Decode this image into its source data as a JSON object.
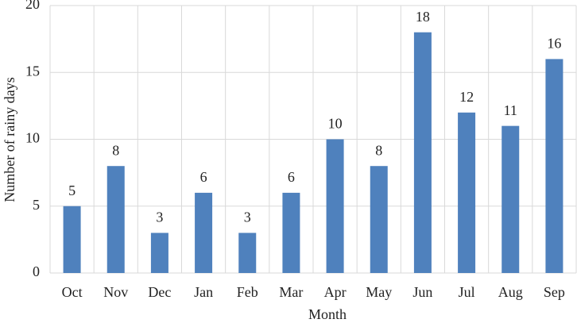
{
  "chart_data": {
    "type": "bar",
    "x_label": "Month",
    "y_label": "Number of rainy days",
    "categories": [
      "Oct",
      "Nov",
      "Dec",
      "Jan",
      "Feb",
      "Mar",
      "Apr",
      "May",
      "Jun",
      "Jul",
      "Aug",
      "Sep"
    ],
    "values": [
      5,
      8,
      3,
      6,
      3,
      6,
      10,
      8,
      18,
      12,
      11,
      16
    ],
    "color": "#4f81bd",
    "ylim": [
      0,
      20
    ],
    "yticks": [
      0,
      5,
      10,
      15,
      20
    ],
    "grid": true
  }
}
